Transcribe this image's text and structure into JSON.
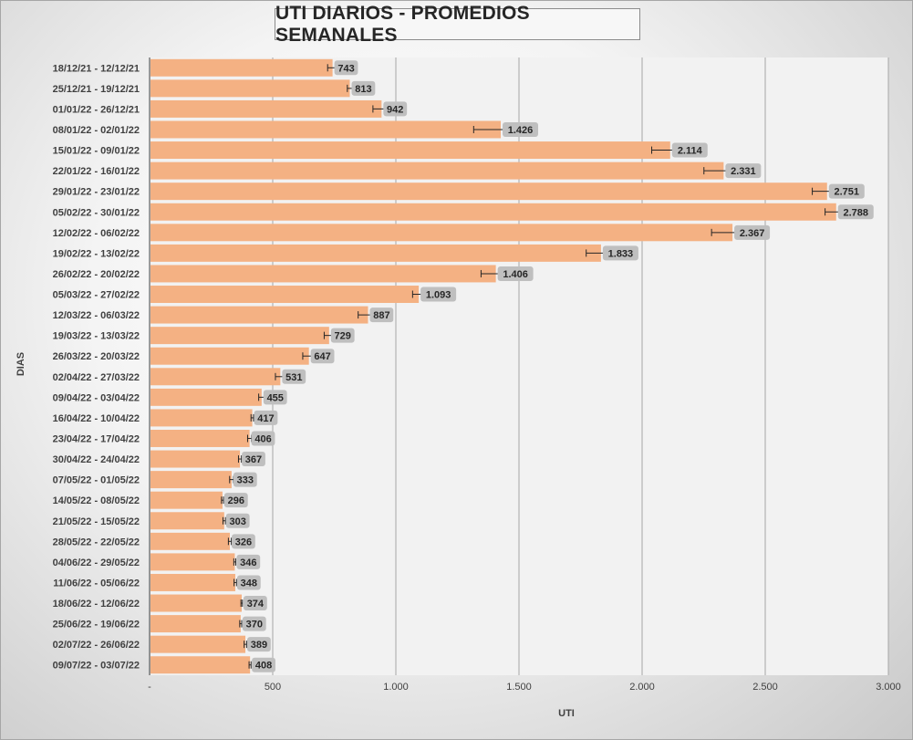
{
  "title": "UTI DIARIOS - PROMEDIOS SEMANALES",
  "chart_data": {
    "type": "bar",
    "orientation": "horizontal",
    "title": "UTI DIARIOS - PROMEDIOS SEMANALES",
    "xlabel": "UTI",
    "ylabel": "DIAS",
    "xlim": [
      0,
      3000
    ],
    "xticks": [
      0,
      500,
      1000,
      1500,
      2000,
      2500,
      3000
    ],
    "xtick_labels": [
      "-",
      "500",
      "1.000",
      "1.500",
      "2.000",
      "2.500",
      "3.000"
    ],
    "categories": [
      "18/12/21 - 12/12/21",
      "25/12/21 - 19/12/21",
      "01/01/22 - 26/12/21",
      "08/01/22 - 02/01/22",
      "15/01/22 - 09/01/22",
      "22/01/22 - 16/01/22",
      "29/01/22 - 23/01/22",
      "05/02/22 - 30/01/22",
      "12/02/22 - 06/02/22",
      "19/02/22 - 13/02/22",
      "26/02/22 - 20/02/22",
      "05/03/22 - 27/02/22",
      "12/03/22 - 06/03/22",
      "19/03/22 - 13/03/22",
      "26/03/22 - 20/03/22",
      "02/04/22 - 27/03/22",
      "09/04/22 - 03/04/22",
      "16/04/22 - 10/04/22",
      "23/04/22 - 17/04/22",
      "30/04/22 - 24/04/22",
      "07/05/22 - 01/05/22",
      "14/05/22 - 08/05/22",
      "21/05/22 - 15/05/22",
      "28/05/22 - 22/05/22",
      "04/06/22 - 29/05/22",
      "11/06/22 - 05/06/22",
      "18/06/22 - 12/06/22",
      "25/06/22 - 19/06/22",
      "02/07/22 - 26/06/22",
      "09/07/22 - 03/07/22"
    ],
    "values": [
      743,
      813,
      942,
      1426,
      2114,
      2331,
      2751,
      2788,
      2367,
      1833,
      1406,
      1093,
      887,
      729,
      647,
      531,
      455,
      417,
      406,
      367,
      333,
      296,
      303,
      326,
      346,
      348,
      374,
      370,
      389,
      408
    ],
    "value_labels": [
      "743",
      "813",
      "942",
      "1.426",
      "2.114",
      "2.331",
      "2.751",
      "2.788",
      "2.367",
      "1.833",
      "1.406",
      "1.093",
      "887",
      "729",
      "647",
      "531",
      "455",
      "417",
      "406",
      "367",
      "333",
      "296",
      "303",
      "326",
      "346",
      "348",
      "374",
      "370",
      "389",
      "408"
    ],
    "error_bars": [
      20,
      10,
      35,
      110,
      75,
      80,
      60,
      45,
      85,
      60,
      60,
      25,
      40,
      20,
      25,
      20,
      12,
      5,
      8,
      6,
      8,
      4,
      5,
      6,
      4,
      5,
      3,
      4,
      5,
      4
    ],
    "bar_color": "#f4b183",
    "label_bg_color": "#bfbfbf",
    "gridlines": true,
    "legend": "none"
  }
}
